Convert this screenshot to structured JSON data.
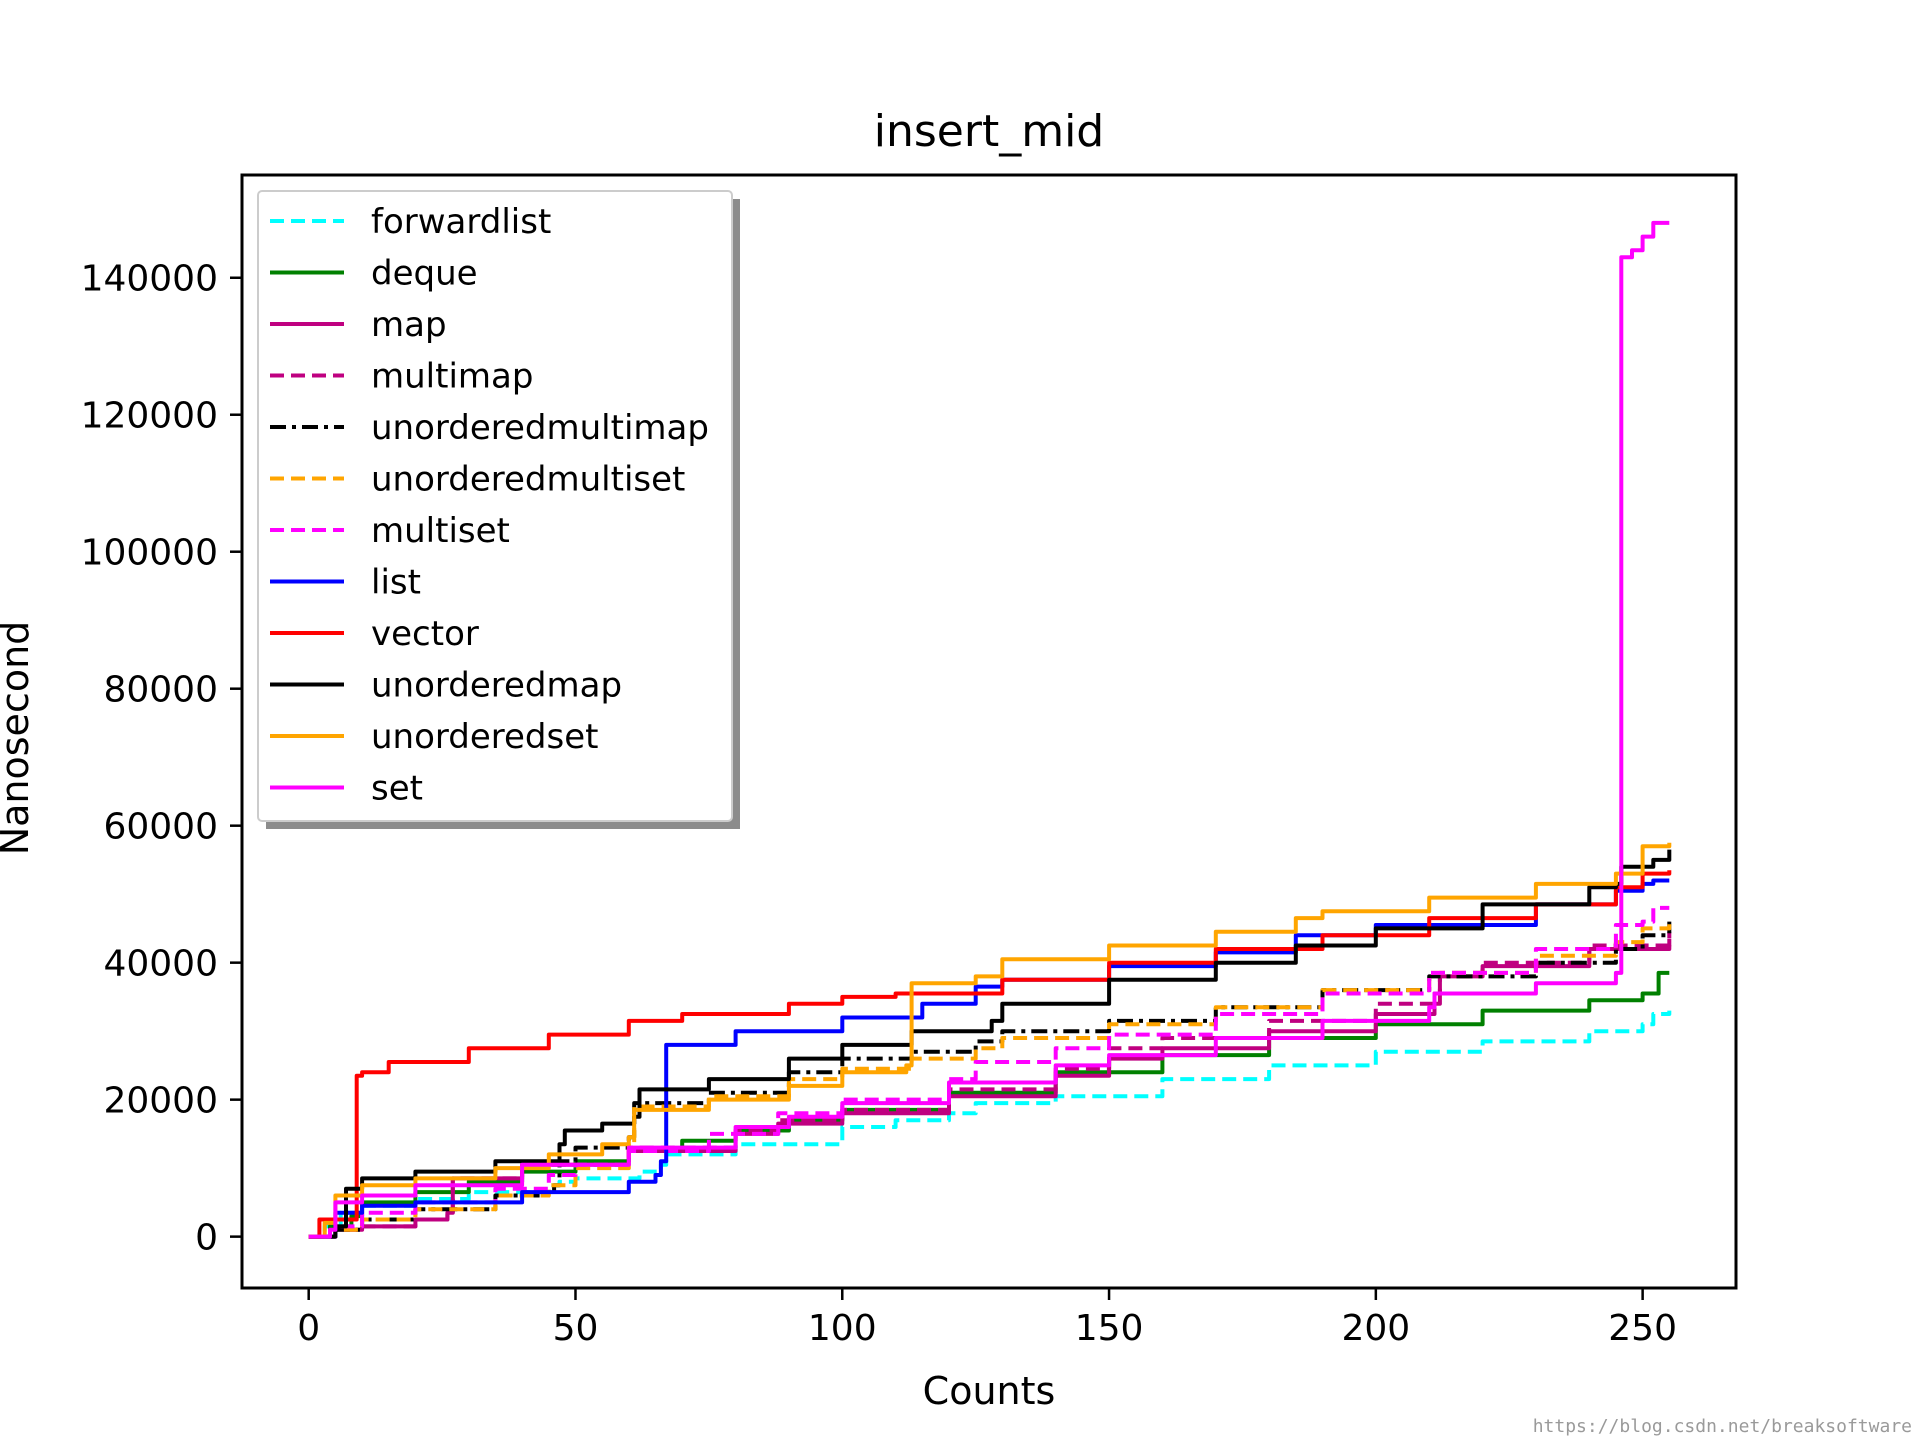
{
  "chart_data": {
    "type": "line",
    "title": "insert_mid",
    "xlabel": "Counts",
    "ylabel": "Nanosecond",
    "xlim": [
      -12.5,
      267.5
    ],
    "ylim": [
      -7500,
      155000
    ],
    "xticks": [
      0,
      50,
      100,
      150,
      200,
      250
    ],
    "xtick_labels": [
      "0",
      "50",
      "100",
      "150",
      "200",
      "250"
    ],
    "yticks": [
      0,
      20000,
      40000,
      60000,
      80000,
      100000,
      120000,
      140000
    ],
    "ytick_labels": [
      "0",
      "20000",
      "40000",
      "60000",
      "80000",
      "100000",
      "120000",
      "140000"
    ],
    "grid": false,
    "legend_position": "upper-left",
    "watermark": "https://blog.csdn.net/breaksoftware",
    "series": [
      {
        "name": "forwardlist",
        "color": "#00ffff",
        "dash": "dashed",
        "x": [
          0,
          3,
          6,
          10,
          20,
          30,
          45,
          47,
          50,
          62,
          66,
          67,
          80,
          100,
          110,
          120,
          125,
          140,
          160,
          180,
          200,
          220,
          240,
          250,
          252,
          255
        ],
        "y": [
          0,
          1500,
          3500,
          4500,
          5500,
          6500,
          7500,
          8000,
          8500,
          9500,
          10500,
          12000,
          13500,
          16000,
          17000,
          18000,
          19500,
          20500,
          23000,
          25000,
          27000,
          28500,
          30000,
          31000,
          32500,
          33000
        ]
      },
      {
        "name": "deque",
        "color": "#008000",
        "dash": "solid",
        "x": [
          0,
          4,
          8,
          10,
          20,
          30,
          40,
          50,
          60,
          70,
          80,
          90,
          100,
          120,
          140,
          160,
          180,
          200,
          220,
          240,
          250,
          253,
          255
        ],
        "y": [
          0,
          1500,
          3000,
          5000,
          6500,
          8000,
          9500,
          11000,
          12500,
          14000,
          15500,
          17000,
          18500,
          21000,
          24000,
          26500,
          29000,
          31000,
          33000,
          34500,
          35500,
          38500,
          38500
        ]
      },
      {
        "name": "map",
        "color": "#bf0080",
        "dash": "solid",
        "x": [
          0,
          5,
          10,
          20,
          26,
          27,
          40,
          60,
          80,
          88,
          100,
          120,
          140,
          150,
          160,
          180,
          200,
          211,
          212,
          220,
          240,
          255
        ],
        "y": [
          0,
          1000,
          1500,
          2500,
          3500,
          8500,
          10500,
          12500,
          15000,
          16500,
          18000,
          20500,
          23500,
          26000,
          27500,
          30000,
          32500,
          34000,
          38000,
          39500,
          42000,
          43500
        ]
      },
      {
        "name": "multimap",
        "color": "#bf0080",
        "dash": "dashed",
        "x": [
          0,
          5,
          10,
          20,
          26,
          27,
          40,
          60,
          80,
          88,
          100,
          120,
          140,
          150,
          160,
          180,
          200,
          211,
          212,
          220,
          240,
          255
        ],
        "y": [
          0,
          1000,
          1500,
          2500,
          3500,
          8500,
          10500,
          13000,
          15500,
          17000,
          18500,
          21500,
          24500,
          27500,
          29000,
          31500,
          34000,
          35500,
          38500,
          40000,
          42500,
          44500
        ]
      },
      {
        "name": "unorderedmultimap",
        "color": "#000000",
        "dash": "dashdot",
        "x": [
          0,
          5,
          10,
          20,
          35,
          46,
          47,
          50,
          60,
          61,
          75,
          90,
          100,
          113,
          125,
          130,
          150,
          170,
          190,
          210,
          230,
          245,
          250,
          255
        ],
        "y": [
          0,
          1000,
          2500,
          4000,
          6000,
          7500,
          11000,
          13000,
          14500,
          19500,
          21000,
          24000,
          26000,
          27000,
          28500,
          30000,
          31500,
          33500,
          36000,
          38000,
          40000,
          42000,
          44000,
          46000
        ]
      },
      {
        "name": "unorderedmultiset",
        "color": "#ffa500",
        "dash": "dashed",
        "x": [
          0,
          5,
          10,
          20,
          35,
          45,
          50,
          60,
          61,
          75,
          90,
          100,
          113,
          125,
          130,
          150,
          170,
          190,
          210,
          230,
          245,
          250,
          255
        ],
        "y": [
          0,
          1000,
          2500,
          4000,
          6000,
          7500,
          10000,
          13500,
          19000,
          20500,
          23000,
          24500,
          26000,
          27500,
          29000,
          31000,
          33500,
          36000,
          38500,
          41000,
          43000,
          45000,
          46500
        ]
      },
      {
        "name": "multiset",
        "color": "#ff00ff",
        "dash": "dashed",
        "x": [
          0,
          5,
          10,
          20,
          35,
          45,
          50,
          60,
          75,
          88,
          100,
          120,
          125,
          140,
          150,
          170,
          190,
          210,
          230,
          245,
          250,
          252,
          255
        ],
        "y": [
          0,
          1500,
          3500,
          5000,
          7000,
          9000,
          10500,
          12500,
          15000,
          18000,
          20000,
          23000,
          25500,
          27500,
          29500,
          32500,
          35500,
          38500,
          42000,
          45500,
          46000,
          48000,
          48000
        ]
      },
      {
        "name": "list",
        "color": "#0000ff",
        "dash": "solid",
        "x": [
          0,
          5,
          10,
          20,
          40,
          60,
          65,
          66,
          67,
          80,
          100,
          115,
          125,
          130,
          150,
          170,
          185,
          200,
          230,
          245,
          250,
          252,
          255
        ],
        "y": [
          0,
          3500,
          4500,
          5000,
          6500,
          8000,
          9000,
          11000,
          28000,
          30000,
          32000,
          34000,
          36500,
          37500,
          39500,
          41500,
          44000,
          45500,
          48500,
          50500,
          51500,
          52000,
          52000
        ]
      },
      {
        "name": "vector",
        "color": "#ff0000",
        "dash": "solid",
        "x": [
          0,
          2,
          8,
          9,
          10,
          15,
          30,
          45,
          60,
          70,
          90,
          100,
          110,
          130,
          150,
          170,
          190,
          210,
          230,
          245,
          250,
          255
        ],
        "y": [
          0,
          2500,
          2500,
          23500,
          24000,
          25500,
          27500,
          29500,
          31500,
          32500,
          34000,
          35000,
          35500,
          37500,
          40000,
          42000,
          44000,
          46500,
          48500,
          51000,
          53000,
          53500
        ]
      },
      {
        "name": "unorderedmap",
        "color": "#000000",
        "dash": "solid",
        "x": [
          0,
          5,
          7,
          10,
          20,
          35,
          47,
          48,
          55,
          61,
          62,
          75,
          90,
          100,
          113,
          128,
          130,
          150,
          170,
          185,
          200,
          220,
          240,
          245,
          246,
          252,
          255
        ],
        "y": [
          0,
          1500,
          7000,
          8500,
          9500,
          11000,
          13500,
          15500,
          16500,
          17500,
          21500,
          23000,
          26000,
          28000,
          30000,
          31500,
          34000,
          37500,
          40000,
          42500,
          45000,
          48500,
          51000,
          51500,
          54000,
          55000,
          56500
        ]
      },
      {
        "name": "unorderedset",
        "color": "#ffa500",
        "dash": "solid",
        "x": [
          0,
          3,
          5,
          10,
          20,
          35,
          45,
          55,
          60,
          61,
          75,
          90,
          100,
          112,
          113,
          125,
          130,
          150,
          170,
          185,
          190,
          210,
          230,
          245,
          250,
          255
        ],
        "y": [
          0,
          2000,
          6000,
          7500,
          8500,
          10000,
          12000,
          13500,
          14500,
          18500,
          20000,
          22000,
          24000,
          25000,
          37000,
          38000,
          40500,
          42500,
          44500,
          46500,
          47500,
          49500,
          51500,
          53000,
          57000,
          57500
        ]
      },
      {
        "name": "set",
        "color": "#ff00ff",
        "dash": "solid",
        "x": [
          0,
          4,
          5,
          10,
          20,
          40,
          60,
          80,
          90,
          100,
          120,
          140,
          150,
          170,
          190,
          210,
          211,
          230,
          245,
          246,
          248,
          250,
          252,
          255
        ],
        "y": [
          0,
          1000,
          5000,
          6000,
          7500,
          10500,
          13000,
          16000,
          17500,
          19500,
          22500,
          25000,
          26500,
          29000,
          31500,
          33500,
          35500,
          37000,
          38500,
          143000,
          144000,
          146000,
          148000,
          148000
        ]
      }
    ]
  }
}
